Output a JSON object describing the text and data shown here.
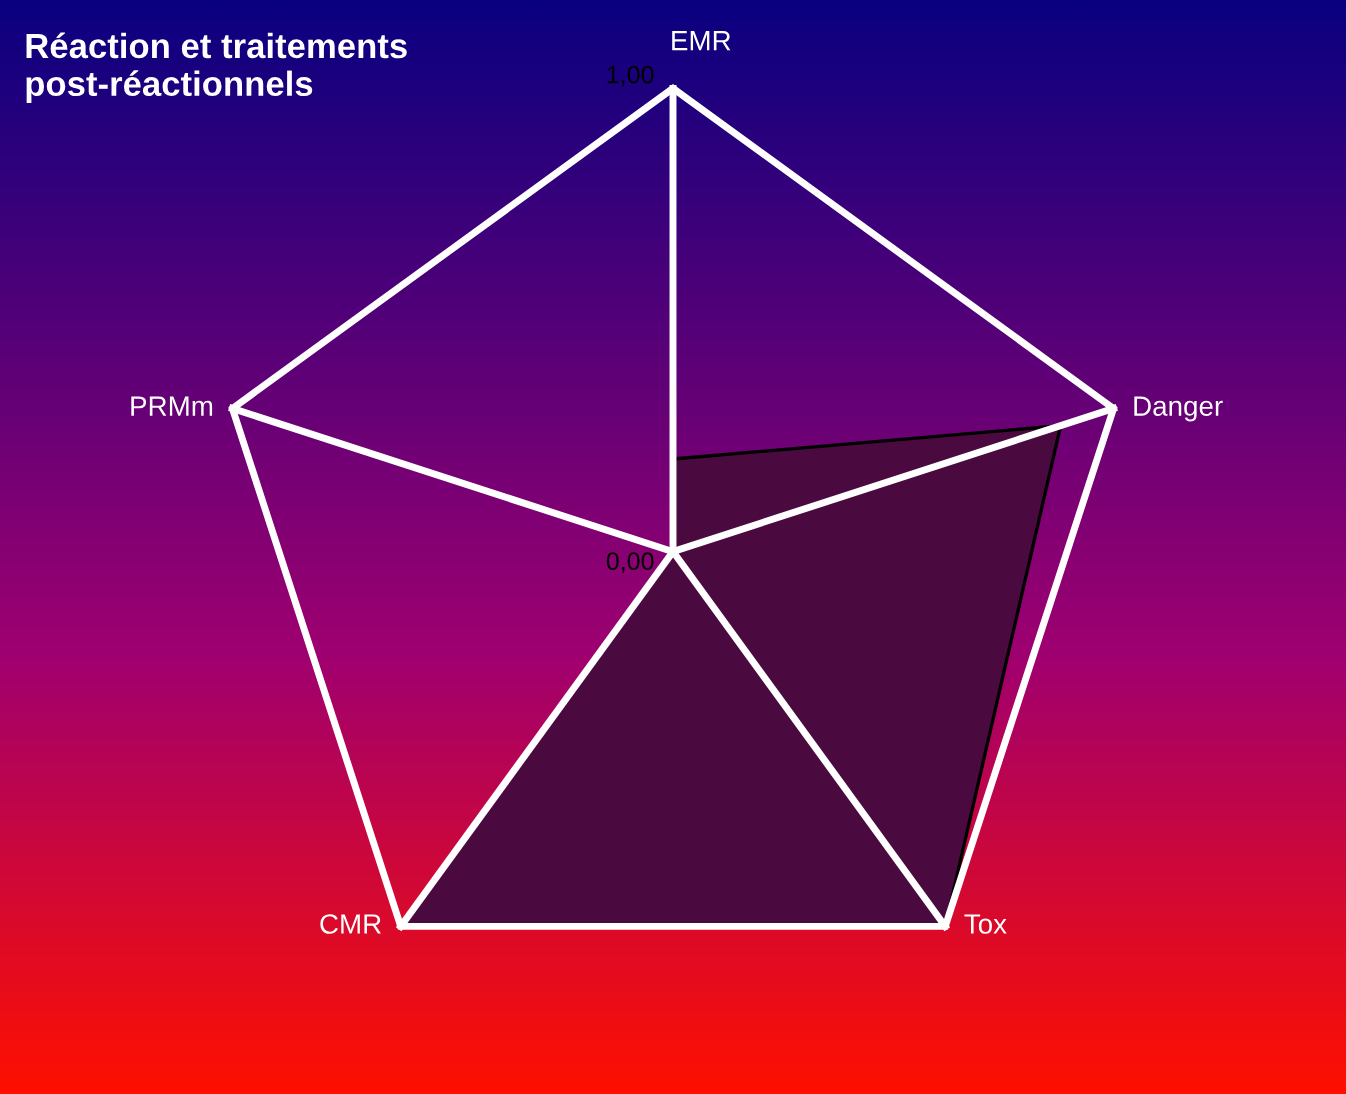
{
  "chart_data": {
    "type": "radar",
    "title": "Réaction et traitements\npost-réactionnels",
    "categories": [
      "EMR",
      "Danger",
      "Tox",
      "CMR",
      "PRMm"
    ],
    "series": [
      {
        "color": "#4a0a40",
        "values": [
          0.2,
          0.88,
          1,
          1,
          0
        ]
      }
    ],
    "ylim": [
      0,
      1
    ],
    "yticks": [
      {
        "value": 0,
        "label": "0,00"
      },
      {
        "value": 1,
        "label": "1,00"
      }
    ],
    "grid": true
  }
}
